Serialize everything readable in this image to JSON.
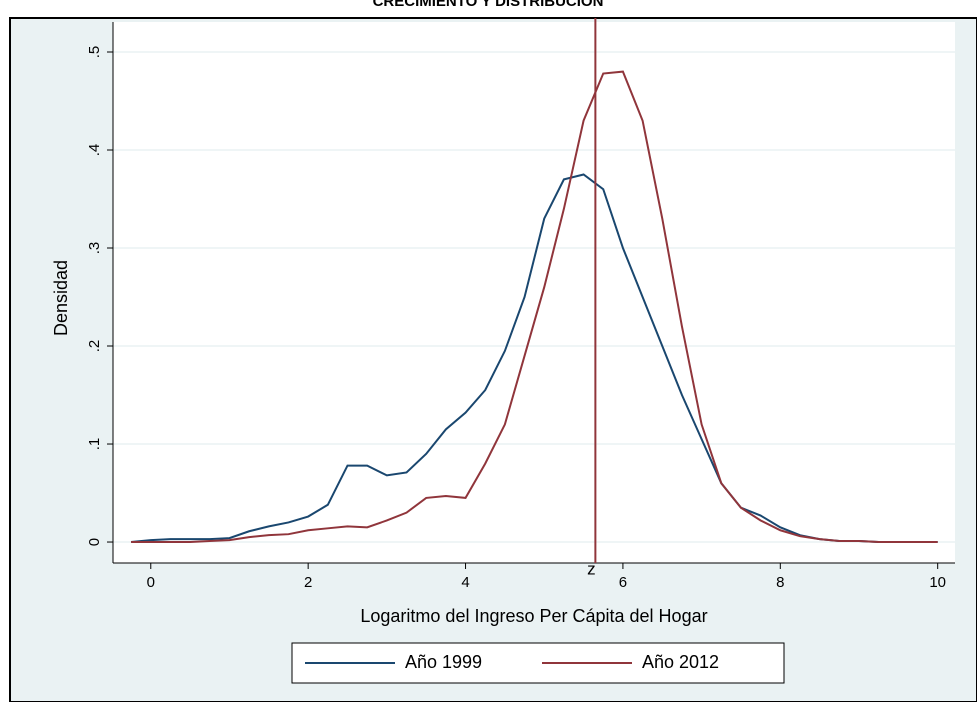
{
  "chart_data": {
    "type": "line",
    "title": "CRECIMIENTO Y DISTRIBUCIÓN",
    "xlabel": "Logaritmo del Ingreso Per Cápita del Hogar",
    "ylabel": "Densidad",
    "x": [
      -0.25,
      0,
      0.25,
      0.5,
      0.75,
      1,
      1.25,
      1.5,
      1.75,
      2,
      2.25,
      2.5,
      2.75,
      3,
      3.25,
      3.5,
      3.75,
      4,
      4.25,
      4.5,
      4.75,
      5,
      5.25,
      5.5,
      5.75,
      6,
      6.25,
      6.5,
      6.75,
      7,
      7.25,
      7.5,
      7.75,
      8,
      8.25,
      8.5,
      8.75,
      9,
      9.25,
      9.5,
      9.75,
      10
    ],
    "series": [
      {
        "name": "Año 1999",
        "color": "#1a476f",
        "values": [
          0,
          0.002,
          0.003,
          0.003,
          0.003,
          0.004,
          0.011,
          0.016,
          0.02,
          0.026,
          0.038,
          0.078,
          0.078,
          0.068,
          0.071,
          0.09,
          0.115,
          0.132,
          0.155,
          0.195,
          0.25,
          0.33,
          0.37,
          0.375,
          0.36,
          0.3,
          0.25,
          0.2,
          0.15,
          0.105,
          0.06,
          0.035,
          0.027,
          0.015,
          0.007,
          0.003,
          0.001,
          0.001,
          0,
          0,
          0,
          0
        ]
      },
      {
        "name": "Año 2012",
        "color": "#90353b",
        "values": [
          0,
          0,
          0,
          0,
          0.001,
          0.002,
          0.005,
          0.007,
          0.008,
          0.012,
          0.014,
          0.016,
          0.015,
          0.022,
          0.03,
          0.045,
          0.047,
          0.045,
          0.08,
          0.12,
          0.19,
          0.26,
          0.34,
          0.43,
          0.478,
          0.48,
          0.43,
          0.33,
          0.22,
          0.12,
          0.06,
          0.035,
          0.022,
          0.012,
          0.006,
          0.003,
          0.001,
          0.001,
          0,
          0,
          0,
          0
        ]
      }
    ],
    "xlim": [
      -0.48,
      10.22
    ],
    "xticks": [
      0,
      2,
      4,
      6,
      8,
      10
    ],
    "ylim": [
      -0.0214,
      0.5306
    ],
    "yticks": [
      0,
      {
        "value": 0.1,
        "label": ".1"
      },
      {
        "value": 0.2,
        "label": ".2"
      },
      {
        "value": 0.3,
        "label": ".3"
      },
      {
        "value": 0.4,
        "label": ".4"
      },
      {
        "value": 0.5,
        "label": ".5"
      }
    ],
    "grid": true,
    "reference_line": {
      "x": 5.65,
      "label": "z",
      "color": "#90353b"
    },
    "legend": "bottom"
  }
}
